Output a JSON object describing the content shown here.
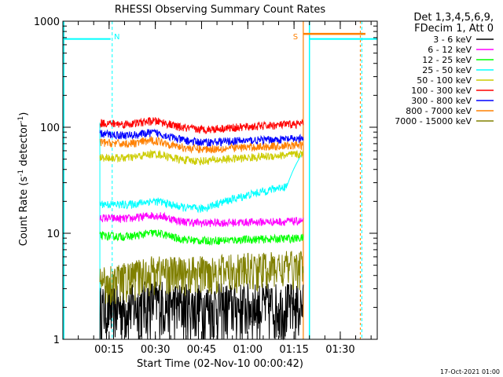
{
  "chart_data": {
    "type": "line",
    "title": "RHESSI Observing Summary Count Rates",
    "xlabel": "Start Time (02-Nov-10 00:00:42)",
    "ylabel_main": "Count Rate (s",
    "ylabel_sup1": "-1",
    "ylabel_mid": " detector",
    "ylabel_sup2": "-1",
    "ylabel_end": ")",
    "yscale": "log",
    "ylim": [
      1,
      1000
    ],
    "xlim_minutes": [
      0,
      102
    ],
    "x_tick_labels": [
      "00:15",
      "00:30",
      "00:45",
      "01:00",
      "01:15",
      "01:30"
    ],
    "x_tick_minutes": [
      15,
      30,
      45,
      60,
      75,
      90
    ],
    "y_tick_labels": [
      "1",
      "10",
      "100",
      "1000"
    ],
    "y_tick_values": [
      1,
      10,
      100,
      1000
    ],
    "data_range_minutes": [
      12,
      78
    ],
    "legend": {
      "header1": "Det 1,3,4,5,6,9,",
      "header2": "FDecim 1, Att 0",
      "placement": "top-right"
    },
    "series": [
      {
        "name": "3 - 6 keV",
        "color": "#000000",
        "start": 1.5,
        "mid": 1.6,
        "end": 1.6
      },
      {
        "name": "6 - 12 keV",
        "color": "#ff00ff",
        "start": 14,
        "mid": 12.5,
        "end": 13
      },
      {
        "name": "12 - 25 keV",
        "color": "#00ff00",
        "start": 9.5,
        "mid": 8.5,
        "end": 9
      },
      {
        "name": "25 - 50 keV",
        "color": "#00ffff",
        "start": 19,
        "mid": 17,
        "end": 30
      },
      {
        "name": "50 - 100 keV",
        "color": "#cccc00",
        "start": 52,
        "mid": 48,
        "end": 56
      },
      {
        "name": "100 - 300 keV",
        "color": "#ff0000",
        "start": 110,
        "mid": 95,
        "end": 108
      },
      {
        "name": "300 - 800 keV",
        "color": "#0000ff",
        "start": 87,
        "mid": 72,
        "end": 78
      },
      {
        "name": "800 - 7000 keV",
        "color": "#ff8000",
        "start": 72,
        "mid": 62,
        "end": 68
      },
      {
        "name": "7000 - 15000 keV",
        "color": "#808000",
        "start": 3.2,
        "mid": 4.0,
        "end": 4.5
      }
    ],
    "annotations": [
      {
        "text": "N",
        "minute": 16,
        "color": "#00ffff"
      },
      {
        "text": "S",
        "minute": 77,
        "color": "#ff8000"
      }
    ],
    "saa_level": 680,
    "footer": "17-Oct-2021 01:00"
  }
}
